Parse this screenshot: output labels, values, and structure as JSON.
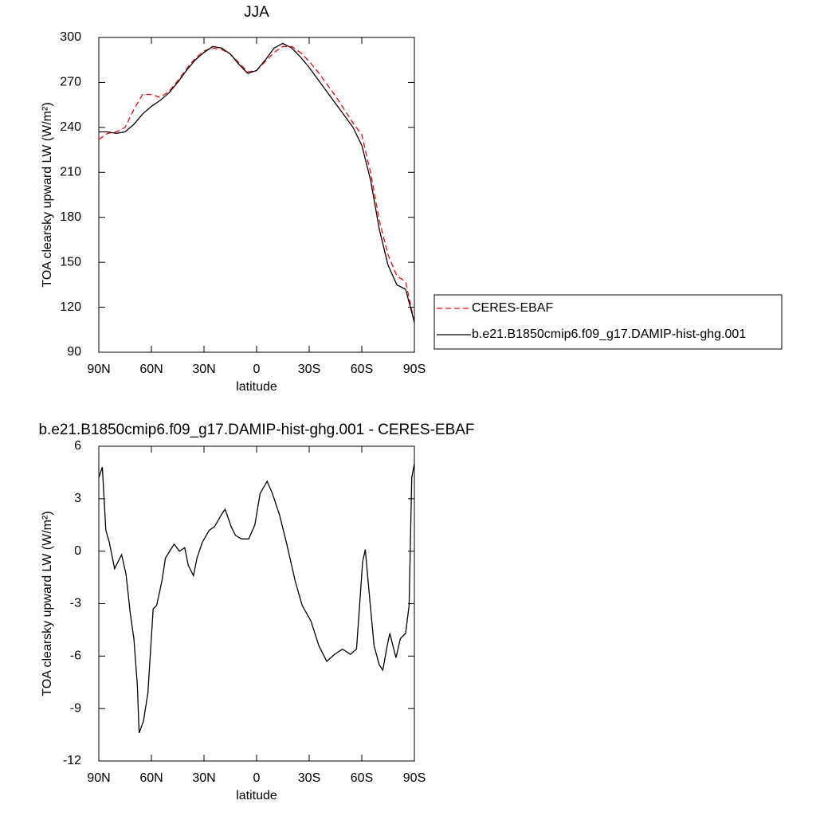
{
  "chart_data": [
    {
      "type": "line",
      "title": "JJA",
      "x_label": "latitude",
      "y_label": "TOA clearsky upward LW (W/m²)",
      "x": [
        90,
        85,
        80,
        75,
        70,
        65,
        60,
        55,
        50,
        45,
        40,
        35,
        30,
        25,
        20,
        15,
        10,
        5,
        0,
        -5,
        -10,
        -15,
        -20,
        -25,
        -30,
        -35,
        -40,
        -45,
        -50,
        -55,
        -60,
        -65,
        -70,
        -75,
        -80,
        -85,
        -90
      ],
      "series": [
        {
          "name": "CERES-EBAF",
          "color": "#ff0000",
          "line_style": "dashed",
          "values": [
            232,
            236,
            237,
            240,
            252,
            262,
            262,
            260,
            264,
            271,
            279,
            286,
            291,
            293,
            292,
            289,
            283,
            277,
            278,
            284,
            290,
            294,
            294,
            290,
            284,
            277,
            269,
            261,
            252,
            243,
            235,
            210,
            178,
            155,
            141,
            137,
            110
          ]
        },
        {
          "name": "b.e21.B1850cmip6.f09_g17.DAMIP-hist-ghg.001",
          "color": "#000000",
          "line_style": "solid",
          "values": [
            237,
            237,
            236,
            237,
            242,
            249,
            254,
            258,
            263,
            270,
            278,
            285,
            290,
            294,
            293,
            289,
            282,
            276,
            278,
            285,
            293,
            296,
            293,
            287,
            280,
            272,
            264,
            256,
            248,
            240,
            228,
            205,
            172,
            148,
            135,
            132,
            110
          ]
        }
      ],
      "xlim": [
        90,
        -90
      ],
      "xticks": [
        {
          "value": 90,
          "label": "90N"
        },
        {
          "value": 60,
          "label": "60N"
        },
        {
          "value": 30,
          "label": "30N"
        },
        0,
        {
          "value": -30,
          "label": "30S"
        },
        {
          "value": -60,
          "label": "60S"
        },
        {
          "value": -90,
          "label": "90S"
        }
      ],
      "ylim": [
        90,
        300
      ],
      "yticks": [
        90,
        120,
        150,
        180,
        210,
        240,
        270,
        300
      ],
      "legend": "right"
    },
    {
      "type": "line",
      "title": "b.e21.B1850cmip6.f09_g17.DAMIP-hist-ghg.001 - CERES-EBAF",
      "x_label": "latitude",
      "y_label": "TOA clearsky upward LW (W/m²)",
      "x": [
        90,
        88,
        86,
        84,
        81,
        77,
        74.5,
        72,
        70,
        68,
        67,
        64.5,
        62,
        59,
        57,
        54,
        52,
        49,
        47,
        44,
        41,
        39,
        36,
        34,
        31,
        27,
        24,
        20,
        18,
        14.5,
        12,
        8.6,
        4.5,
        1,
        -2,
        -6,
        -9,
        -13,
        -17,
        -22,
        -26,
        -31,
        -35.5,
        -40,
        -44.5,
        -49,
        -53.5,
        -57,
        -60.5,
        -62,
        -64.5,
        -67,
        -70,
        -72,
        -74.5,
        -76,
        -79.5,
        -82,
        -85,
        -87,
        -88.5,
        -90
      ],
      "series": [
        {
          "color": "#000000",
          "line_style": "solid",
          "values": [
            4.2,
            4.8,
            1.2,
            0.5,
            -1.0,
            -0.2,
            -1.3,
            -3.6,
            -5.0,
            -7.7,
            -10.4,
            -9.7,
            -8.1,
            -3.3,
            -3.1,
            -1.7,
            -0.4,
            0.1,
            0.4,
            0.0,
            0.2,
            -0.8,
            -1.4,
            -0.4,
            0.5,
            1.2,
            1.4,
            2.1,
            2.4,
            1.4,
            0.9,
            0.7,
            0.7,
            1.5,
            3.3,
            4.0,
            3.3,
            2.1,
            0.5,
            -1.7,
            -3.1,
            -4.0,
            -5.4,
            -6.3,
            -5.9,
            -5.6,
            -5.9,
            -5.6,
            -0.6,
            0.1,
            -2.7,
            -5.4,
            -6.5,
            -6.8,
            -5.4,
            -4.7,
            -6.1,
            -5.0,
            -4.7,
            -3.1,
            4.2,
            5.0
          ]
        }
      ],
      "xlim": [
        90,
        -90
      ],
      "xticks": [
        {
          "value": 90,
          "label": "90N"
        },
        {
          "value": 60,
          "label": "60N"
        },
        {
          "value": 30,
          "label": "30N"
        },
        0,
        {
          "value": -30,
          "label": "30S"
        },
        {
          "value": -60,
          "label": "60S"
        },
        {
          "value": -90,
          "label": "90S"
        }
      ],
      "ylim": [
        -12,
        6
      ],
      "yticks": [
        -12,
        -9,
        -6,
        -3,
        0,
        3,
        6
      ]
    }
  ]
}
